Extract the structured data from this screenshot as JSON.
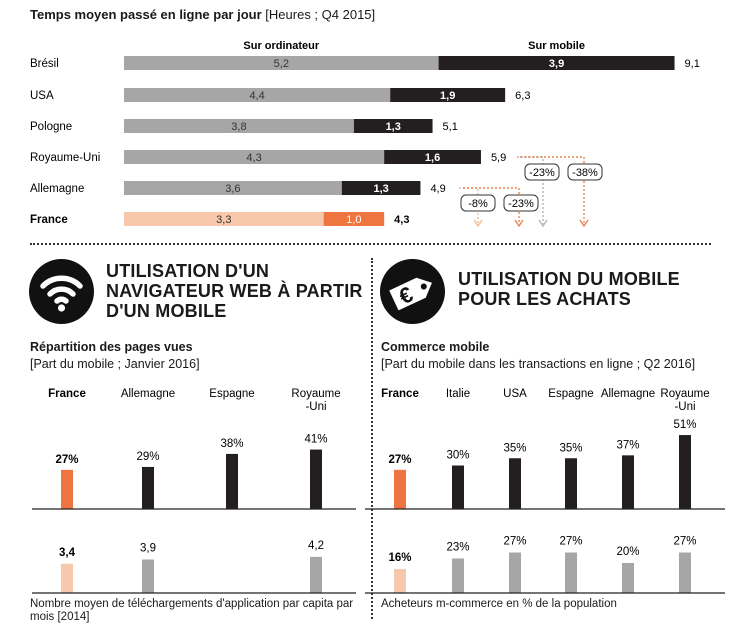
{
  "top": {
    "title_bold": "Temps moyen passé en ligne par jour",
    "title_unit": "[Heures ; Q4 2015]",
    "col_desktop": "Sur ordinateur",
    "col_mobile": "Sur mobile"
  },
  "colors": {
    "desktop": "#a6a6a6",
    "mobile": "#231f20",
    "fr_desktop": "#f8c8ad",
    "fr_mobile": "#ee7440",
    "fr_arrow": "#e9864f",
    "fr_arrow_light": "#f5b990",
    "grey_arrow": "#b5b5b5"
  },
  "arrow_labels": [
    "-8%",
    "-23%",
    "-23%",
    "-38%"
  ],
  "section_left": {
    "title_lines": [
      "UTILISATION D'UN",
      "NAVIGATEUR WEB À PARTIR",
      "D'UN MOBILE"
    ],
    "chart_title": "Répartition des pages vues",
    "chart_unit": "[Part du mobile ; Janvier 2016]",
    "footnote": "Nombre moyen de téléchargements d'application par capita par mois [2014]"
  },
  "section_right": {
    "title_lines": [
      "UTILISATION DU MOBILE",
      "POUR LES ACHATS"
    ],
    "chart_title": "Commerce mobile",
    "chart_unit": "[Part du mobile dans les transactions en ligne ; Q2 2016]",
    "footnote": "Acheteurs m-commerce en % de la population",
    "euro_symbol": "€"
  },
  "chart_data": [
    {
      "type": "bar",
      "orientation": "horizontal-stacked",
      "title": "Temps moyen passé en ligne par jour [Heures ; Q4 2015]",
      "categories": [
        "Brésil",
        "USA",
        "Pologne",
        "Royaume-Uni",
        "Allemagne",
        "France"
      ],
      "series": [
        {
          "name": "Sur ordinateur",
          "values": [
            5.2,
            4.4,
            3.8,
            4.3,
            3.6,
            3.3
          ],
          "labels": [
            "5,2",
            "4,4",
            "3,8",
            "4,3",
            "3,6",
            "3,3"
          ]
        },
        {
          "name": "Sur mobile",
          "values": [
            3.9,
            1.9,
            1.3,
            1.6,
            1.3,
            1.0
          ],
          "labels": [
            "3,9",
            "1,9",
            "1,3",
            "1,6",
            "1,3",
            "1,0"
          ]
        }
      ],
      "totals": [
        9.1,
        6.3,
        5.1,
        5.9,
        4.9,
        4.3
      ],
      "total_labels": [
        "9,1",
        "6,3",
        "5,1",
        "5,9",
        "4,9",
        "4,3"
      ],
      "highlight": "France"
    },
    {
      "type": "bar",
      "title": "Répartition des pages vues",
      "subtitle": "[Part du mobile ; Janvier 2016]",
      "categories": [
        "France",
        "Allemagne",
        "Espagne",
        "Royaume-Uni"
      ],
      "category_labels": [
        [
          "France"
        ],
        [
          "Allemagne"
        ],
        [
          "Espagne"
        ],
        [
          "Royaume",
          "-Uni"
        ]
      ],
      "values": [
        27,
        29,
        38,
        41
      ],
      "labels": [
        "27%",
        "29%",
        "38%",
        "41%"
      ],
      "highlight": "France"
    },
    {
      "type": "bar",
      "title": "Nombre moyen de téléchargements d'application par capita par mois [2014]",
      "categories": [
        "France",
        "Allemagne",
        "Espagne",
        "Royaume-Uni"
      ],
      "values": [
        3.4,
        3.9,
        null,
        4.2
      ],
      "labels": [
        "3,4",
        "3,9",
        "",
        "4,2"
      ],
      "highlight": "France"
    },
    {
      "type": "bar",
      "title": "Commerce mobile",
      "subtitle": "[Part du mobile dans les transactions en ligne ; Q2 2016]",
      "categories": [
        "France",
        "Italie",
        "USA",
        "Espagne",
        "Allemagne",
        "Royaume-Uni"
      ],
      "category_labels": [
        [
          "France"
        ],
        [
          "Italie"
        ],
        [
          "USA"
        ],
        [
          "Espagne"
        ],
        [
          "Allemagne"
        ],
        [
          "Royaume",
          "-Uni"
        ]
      ],
      "values": [
        27,
        30,
        35,
        35,
        37,
        51
      ],
      "labels": [
        "27%",
        "30%",
        "35%",
        "35%",
        "37%",
        "51%"
      ],
      "highlight": "France"
    },
    {
      "type": "bar",
      "title": "Acheteurs m-commerce en % de la population",
      "categories": [
        "France",
        "Italie",
        "USA",
        "Espagne",
        "Allemagne",
        "Royaume-Uni"
      ],
      "values": [
        16,
        23,
        27,
        27,
        20,
        27
      ],
      "labels": [
        "16%",
        "23%",
        "27%",
        "27%",
        "20%",
        "27%"
      ],
      "highlight": "France"
    }
  ]
}
